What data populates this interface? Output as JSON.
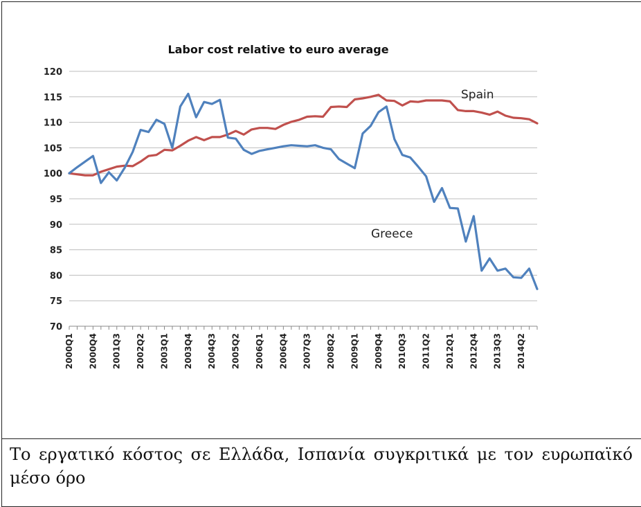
{
  "chart_data": {
    "type": "line",
    "title": "Labor cost relative to euro average",
    "xlabel": "",
    "ylabel": "",
    "ylim": [
      70,
      120
    ],
    "yticks": [
      70,
      75,
      80,
      85,
      90,
      95,
      100,
      105,
      110,
      115,
      120
    ],
    "grid": true,
    "legend": "inline labels",
    "x_tick_labels": [
      "2000Q1",
      "2000Q4",
      "2001Q3",
      "2002Q2",
      "2003Q1",
      "2003Q4",
      "2004Q3",
      "2005Q2",
      "2006Q1",
      "2006Q4",
      "2007Q3",
      "2008Q2",
      "2009Q1",
      "2009Q4",
      "2010Q3",
      "2011Q2",
      "2012Q1",
      "2012Q4",
      "2013Q3",
      "2014Q2"
    ],
    "x": [
      "2000Q1",
      "2000Q2",
      "2000Q3",
      "2000Q4",
      "2001Q1",
      "2001Q2",
      "2001Q3",
      "2001Q4",
      "2002Q1",
      "2002Q2",
      "2002Q3",
      "2002Q4",
      "2003Q1",
      "2003Q2",
      "2003Q3",
      "2003Q4",
      "2004Q1",
      "2004Q2",
      "2004Q3",
      "2004Q4",
      "2005Q1",
      "2005Q2",
      "2005Q3",
      "2005Q4",
      "2006Q1",
      "2006Q2",
      "2006Q3",
      "2006Q4",
      "2007Q1",
      "2007Q2",
      "2007Q3",
      "2007Q4",
      "2008Q1",
      "2008Q2",
      "2008Q3",
      "2008Q4",
      "2009Q1",
      "2009Q2",
      "2009Q3",
      "2009Q4",
      "2010Q1",
      "2010Q2",
      "2010Q3",
      "2010Q4",
      "2011Q1",
      "2011Q2",
      "2011Q3",
      "2011Q4",
      "2012Q1",
      "2012Q2",
      "2012Q3",
      "2012Q4",
      "2013Q1",
      "2013Q2",
      "2013Q3",
      "2013Q4",
      "2014Q1",
      "2014Q2",
      "2014Q3",
      "2014Q4"
    ],
    "series": [
      {
        "name": "Spain",
        "color": "#c0504d",
        "values": [
          100,
          99.8,
          99.6,
          99.6,
          100.3,
          100.8,
          101.3,
          101.5,
          101.4,
          102.3,
          103.4,
          103.6,
          104.6,
          104.5,
          105.4,
          106.4,
          107.1,
          106.5,
          107.1,
          107.1,
          107.6,
          108.3,
          107.6,
          108.6,
          108.9,
          108.9,
          108.7,
          109.5,
          110.1,
          110.5,
          111.1,
          111.2,
          111.1,
          113,
          113.1,
          113,
          114.5,
          114.7,
          115,
          115.4,
          114.3,
          114.2,
          113.3,
          114.1,
          114,
          114.3,
          114.3,
          114.3,
          114.1,
          112.4,
          112.2,
          112.2,
          111.9,
          111.5,
          112.1,
          111.3,
          110.9,
          110.8,
          110.6,
          109.8
        ]
      },
      {
        "name": "Greece",
        "color": "#4f81bd",
        "values": [
          100,
          101.2,
          102.3,
          103.4,
          98.1,
          100.2,
          98.6,
          101.1,
          104.2,
          108.5,
          108.1,
          110.5,
          109.7,
          105,
          113.1,
          115.6,
          111,
          114,
          113.6,
          114.4,
          107,
          106.8,
          104.6,
          103.8,
          104.4,
          104.7,
          105,
          105.3,
          105.5,
          105.4,
          105.3,
          105.5,
          105,
          104.7,
          102.8,
          101.9,
          101,
          107.8,
          109.3,
          112,
          113.1,
          106.7,
          103.6,
          103.1,
          101.3,
          99.4,
          94.4,
          97.1,
          93.2,
          93.1,
          86.6,
          91.6,
          80.9,
          83.3,
          80.9,
          81.3,
          79.6,
          79.5,
          81.3,
          77.3
        ]
      }
    ],
    "annotations": [
      {
        "text": "Spain"
      },
      {
        "text": "Greece"
      }
    ]
  },
  "caption": "Το εργατικό κόστος σε Ελλάδα, Ισπανία συγκριτικά με τον ευρωπαϊκό μέσο όρο"
}
